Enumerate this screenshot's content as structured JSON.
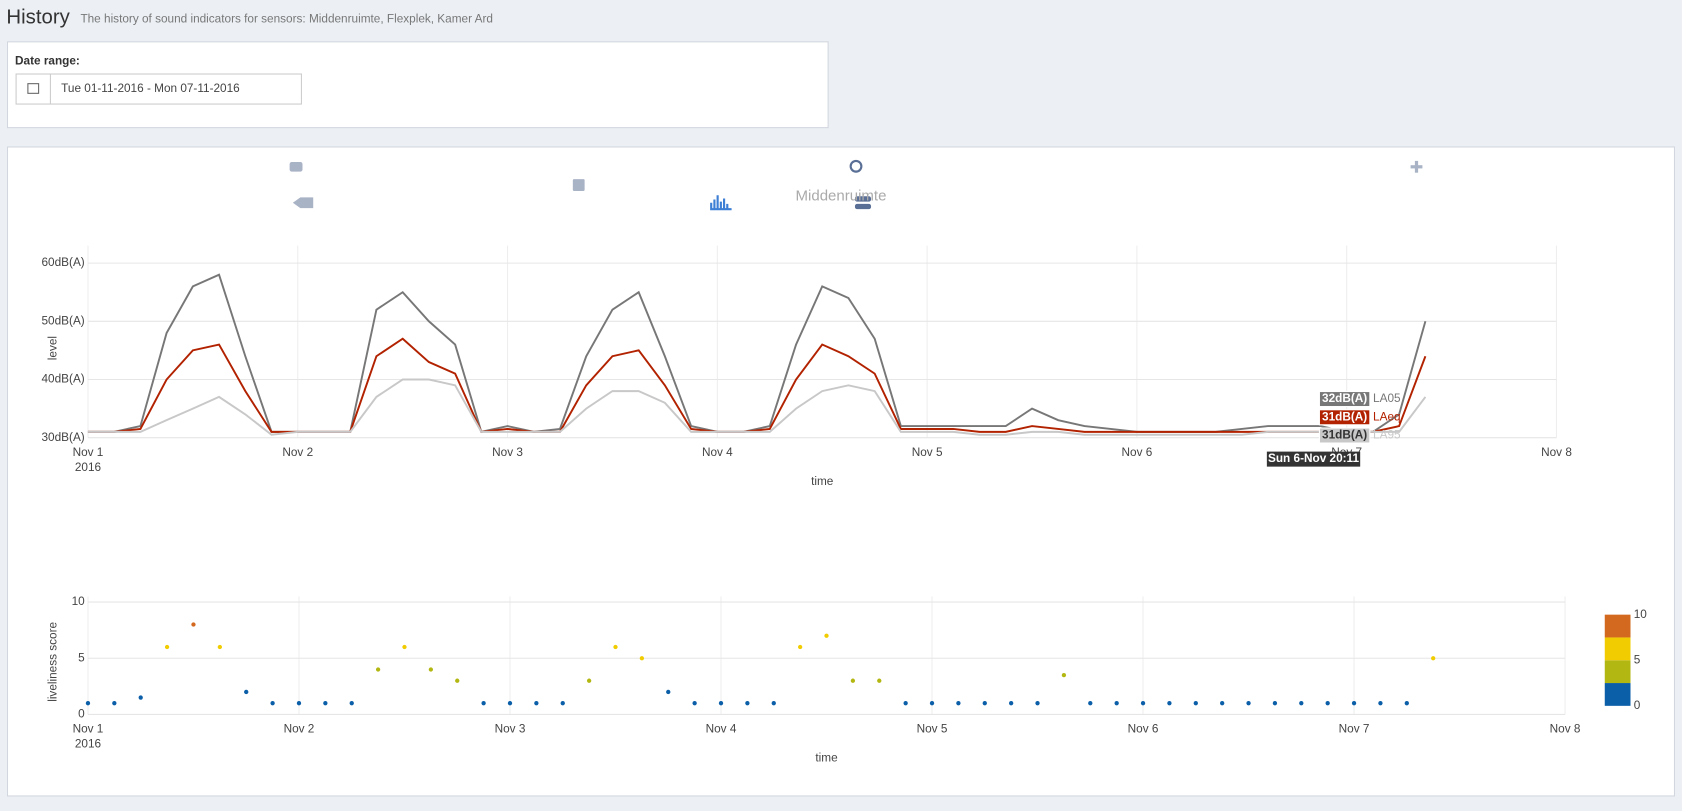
{
  "header": {
    "title": "History",
    "subtitle": "The history of sound indicators for sensors: Middenruimte, Flexplek, Kamer Ard"
  },
  "date_range": {
    "label": "Date range:",
    "value": "Tue 01-11-2016 - Mon 07-11-2016"
  },
  "chart_data": [
    {
      "type": "line",
      "title": "Middenruimte",
      "x_title": "time",
      "y_title": "level",
      "x_year_label": "2016",
      "x": [
        0,
        0.125,
        0.25,
        0.375,
        0.5,
        0.625,
        0.75,
        0.875,
        1,
        1.125,
        1.25,
        1.375,
        1.5,
        1.625,
        1.75,
        1.875,
        2,
        2.125,
        2.25,
        2.375,
        2.5,
        2.625,
        2.75,
        2.875,
        3,
        3.125,
        3.25,
        3.375,
        3.5,
        3.625,
        3.75,
        3.875,
        4,
        4.125,
        4.25,
        4.375,
        4.5,
        4.625,
        4.75,
        4.875,
        5,
        5.125,
        5.25,
        5.375,
        5.5,
        5.625,
        5.75,
        5.875,
        6,
        6.125,
        6.25,
        6.375
      ],
      "series": [
        {
          "name": "LA05",
          "color": "#777777",
          "values": [
            31,
            31,
            32,
            48,
            56,
            58,
            44,
            31,
            31,
            31,
            31,
            52,
            55,
            50,
            46,
            31,
            32,
            31,
            31.5,
            44,
            52,
            55,
            44,
            32,
            31,
            31,
            32,
            46,
            56,
            54,
            47,
            32,
            32,
            32,
            32,
            32,
            35,
            33,
            32,
            31.5,
            31,
            31,
            31,
            31,
            31.5,
            32,
            32,
            32,
            31,
            31,
            34,
            50
          ]
        },
        {
          "name": "LAeq",
          "color": "#b22200",
          "values": [
            31,
            31,
            31.5,
            40,
            45,
            46,
            38,
            31,
            31,
            31,
            31,
            44,
            47,
            43,
            41,
            31,
            31.5,
            31,
            31,
            39,
            44,
            45,
            39,
            31.5,
            31,
            31,
            31.5,
            40,
            46,
            44,
            41,
            31.5,
            31.5,
            31.5,
            31,
            31,
            32,
            31.5,
            31,
            31,
            31,
            31,
            31,
            31,
            31,
            31,
            31,
            31,
            31,
            31,
            32,
            44
          ]
        },
        {
          "name": "LA95",
          "color": "#c8c8c8",
          "values": [
            31,
            31,
            31,
            33,
            35,
            37,
            34,
            30.5,
            31,
            31,
            31,
            37,
            40,
            40,
            39,
            31,
            31,
            31,
            31,
            35,
            38,
            38,
            36,
            31,
            31,
            31,
            31,
            35,
            38,
            39,
            38,
            31,
            31,
            31,
            30.5,
            30.5,
            31,
            31,
            30.5,
            30.5,
            30.5,
            30.5,
            30.5,
            30.5,
            30.5,
            31,
            31,
            31,
            31,
            31,
            31,
            37
          ]
        }
      ],
      "xlim": [
        0,
        7
      ],
      "ylim": [
        30,
        63
      ],
      "xticks": [
        {
          "value": 0,
          "label": "Nov 1"
        },
        {
          "value": 1,
          "label": "Nov 2"
        },
        {
          "value": 2,
          "label": "Nov 3"
        },
        {
          "value": 3,
          "label": "Nov 4"
        },
        {
          "value": 4,
          "label": "Nov 5"
        },
        {
          "value": 5,
          "label": "Nov 6"
        },
        {
          "value": 6,
          "label": "Nov 7"
        },
        {
          "value": 7,
          "label": "Nov 8"
        }
      ],
      "yticks": [
        {
          "value": 30,
          "label": "30dB(A)"
        },
        {
          "value": 40,
          "label": "40dB(A)"
        },
        {
          "value": 50,
          "label": "50dB(A)"
        },
        {
          "value": 60,
          "label": "60dB(A)"
        }
      ],
      "grid": true,
      "hover": {
        "x_label": "Sun 6-Nov 20:11",
        "value_labels": [
          "32dB(A)",
          "31dB(A)",
          "31dB(A)"
        ]
      }
    },
    {
      "type": "scatter",
      "x_title": "time",
      "y_title": "liveliness score",
      "x_year_label": "2016",
      "x": [
        0,
        0.125,
        0.25,
        0.375,
        0.5,
        0.625,
        0.75,
        0.875,
        1,
        1.125,
        1.25,
        1.375,
        1.5,
        1.625,
        1.75,
        1.875,
        2,
        2.125,
        2.25,
        2.375,
        2.5,
        2.625,
        2.75,
        2.875,
        3,
        3.125,
        3.25,
        3.375,
        3.5,
        3.625,
        3.75,
        3.875,
        4,
        4.125,
        4.25,
        4.375,
        4.5,
        4.625,
        4.75,
        4.875,
        5,
        5.125,
        5.25,
        5.375,
        5.5,
        5.625,
        5.75,
        5.875,
        6,
        6.125,
        6.25,
        6.375
      ],
      "values": [
        1,
        1,
        1.5,
        6,
        8,
        6,
        2,
        1,
        1,
        1,
        1,
        4,
        6,
        4,
        3,
        1,
        1,
        1,
        1,
        3,
        6,
        5,
        2,
        1,
        1,
        1,
        1,
        6,
        7,
        3,
        3,
        1,
        1,
        1,
        1,
        1,
        1,
        3.5,
        1,
        1,
        1,
        1,
        1,
        1,
        1,
        1,
        1,
        1,
        1,
        1,
        1,
        5
      ],
      "xlim": [
        0,
        7
      ],
      "ylim": [
        0,
        10.5
      ],
      "xticks": [
        {
          "value": 0,
          "label": "Nov 1"
        },
        {
          "value": 1,
          "label": "Nov 2"
        },
        {
          "value": 2,
          "label": "Nov 3"
        },
        {
          "value": 3,
          "label": "Nov 4"
        },
        {
          "value": 4,
          "label": "Nov 5"
        },
        {
          "value": 5,
          "label": "Nov 6"
        },
        {
          "value": 6,
          "label": "Nov 7"
        },
        {
          "value": 7,
          "label": "Nov 8"
        }
      ],
      "yticks": [
        0,
        5,
        10
      ],
      "grid": true,
      "colorscale": [
        {
          "value": 0,
          "color": "#0b5ea8"
        },
        {
          "value": 2.5,
          "color": "#b3b712"
        },
        {
          "value": 5,
          "color": "#f0cc00"
        },
        {
          "value": 7.5,
          "color": "#d2691e"
        }
      ],
      "clim": [
        0,
        10
      ],
      "colorbar_ticks": [
        0,
        5,
        10
      ]
    }
  ]
}
